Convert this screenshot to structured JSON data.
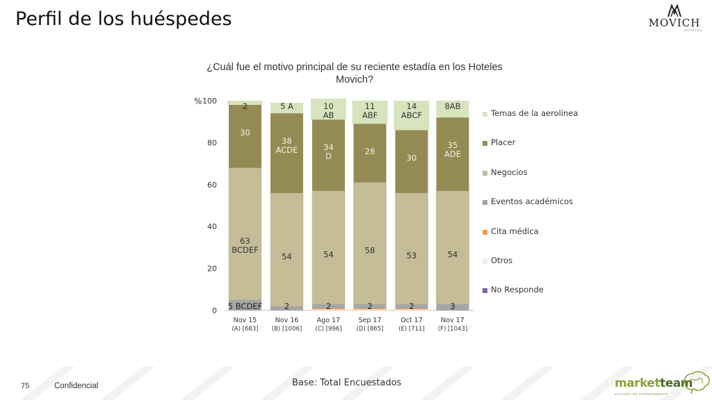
{
  "slide": {
    "title": "Perfil de los huéspedes",
    "page_number": "75",
    "confidential": "Confidencial",
    "base": "Base: Total Encuestados"
  },
  "logos": {
    "movich": "MOVICH",
    "movich_sub": "HOTELES",
    "marketteam_a": "market",
    "marketteam_b": "team",
    "marketteam_tag": "CULTURA DE CONOCIMIENTO"
  },
  "colors": {
    "temas": "#d7e4bd",
    "placer": "#948a54",
    "negocios": "#c4bd97",
    "eventos": "#a6a6a6",
    "cita": "#f79646",
    "otros": "#eeeeee",
    "no_responde": "#8064a2",
    "brand_green": "#8aa23c"
  },
  "chart_data": {
    "type": "bar",
    "stacked": true,
    "title": "¿Cuál fue el motivo principal de su reciente estadía en los Hoteles Movich?",
    "ylabel": "%",
    "ylim": [
      0,
      100
    ],
    "yticks": [
      0,
      20,
      40,
      60,
      80,
      100
    ],
    "categories": [
      "Nov 15",
      "Nov 16",
      "Ago 17",
      "Sep 17",
      "Oct 17",
      "Nov 17"
    ],
    "category_sublabels": [
      "(A) [683]",
      "(B) [1006]",
      "(C) [996]",
      "(D) [865]",
      "(E) [711]",
      "(F) [1043]"
    ],
    "legend_position": "right",
    "series": [
      {
        "name": "No Responde",
        "values": [
          0,
          0,
          0,
          0,
          0,
          0
        ]
      },
      {
        "name": "Otros",
        "values": [
          0,
          0,
          0.5,
          0.5,
          0.5,
          0
        ]
      },
      {
        "name": "Cita médica",
        "values": [
          0,
          0,
          0.5,
          0.5,
          0.5,
          0
        ]
      },
      {
        "name": "Eventos académicos",
        "values": [
          5,
          2,
          2,
          2,
          2,
          3
        ]
      },
      {
        "name": "Negocios",
        "values": [
          63,
          54,
          54,
          58,
          53,
          54
        ]
      },
      {
        "name": "Placer",
        "values": [
          30,
          38,
          34,
          28,
          30,
          35
        ]
      },
      {
        "name": "Temas de la aerolínea",
        "values": [
          2,
          5,
          10,
          11,
          14,
          8
        ]
      }
    ],
    "data_labels": [
      {
        "cat": 0,
        "series": "Eventos académicos",
        "text": "5 BCDEF"
      },
      {
        "cat": 0,
        "series": "Negocios",
        "text": "63\nBCDEF"
      },
      {
        "cat": 0,
        "series": "Placer",
        "text": "30"
      },
      {
        "cat": 0,
        "series": "Temas de la aerolínea",
        "text": "2"
      },
      {
        "cat": 1,
        "series": "Eventos académicos",
        "text": "2"
      },
      {
        "cat": 1,
        "series": "Negocios",
        "text": "54"
      },
      {
        "cat": 1,
        "series": "Placer",
        "text": "38\nACDE"
      },
      {
        "cat": 1,
        "series": "Temas de la aerolínea",
        "text": "5 A"
      },
      {
        "cat": 2,
        "series": "Eventos académicos",
        "text": "2"
      },
      {
        "cat": 2,
        "series": "Negocios",
        "text": "54"
      },
      {
        "cat": 2,
        "series": "Placer",
        "text": "34\nD"
      },
      {
        "cat": 2,
        "series": "Temas de la aerolínea",
        "text": "10\nAB"
      },
      {
        "cat": 3,
        "series": "Eventos académicos",
        "text": "2"
      },
      {
        "cat": 3,
        "series": "Negocios",
        "text": "58"
      },
      {
        "cat": 3,
        "series": "Placer",
        "text": "28"
      },
      {
        "cat": 3,
        "series": "Temas de la aerolínea",
        "text": "11\nABF"
      },
      {
        "cat": 4,
        "series": "Eventos académicos",
        "text": "2"
      },
      {
        "cat": 4,
        "series": "Negocios",
        "text": "53"
      },
      {
        "cat": 4,
        "series": "Placer",
        "text": "30"
      },
      {
        "cat": 4,
        "series": "Temas de la aerolínea",
        "text": "14\nABCF"
      },
      {
        "cat": 5,
        "series": "Eventos académicos",
        "text": "3"
      },
      {
        "cat": 5,
        "series": "Negocios",
        "text": "54"
      },
      {
        "cat": 5,
        "series": "Placer",
        "text": "35\nADE"
      },
      {
        "cat": 5,
        "series": "Temas de la aerolínea",
        "text": "8AB"
      }
    ],
    "legend": [
      "Temas de la aerolínea",
      "Placer",
      "Negocios",
      "Eventos académicos",
      "Cita médica",
      "Otros",
      "No Responde"
    ]
  }
}
